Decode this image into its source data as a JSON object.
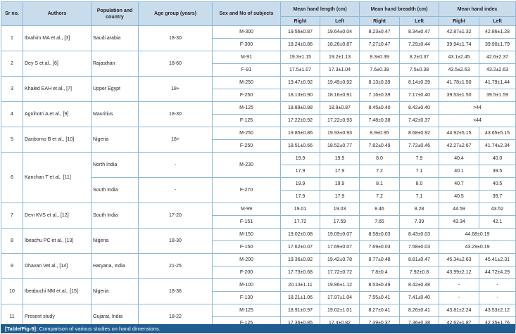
{
  "headers": {
    "sr": "Sr no.",
    "authors": "Authors",
    "population": "Population and country",
    "age": "Age group (years)",
    "sex": "Sex and No of subjects",
    "length": "Mean hand length (cm)",
    "breadth": "Mean hand breadth (cm)",
    "index": "Mean hand index",
    "right": "Right",
    "left": "Left"
  },
  "rows": [
    {
      "sr": "1",
      "author": "Ibrahim MA et al., [3]",
      "pop": "Saudi arabia",
      "age": "18-30",
      "sub": [
        {
          "sex": "M-300",
          "len_r": "19.56±0.87",
          "len_l": "19.64±0.04",
          "br_r": "8.23±0.47",
          "br_l": "8.34±0.47",
          "idx_r": "42.87±1.32",
          "idx_l": "42.86±1.28"
        },
        {
          "sex": "F-300",
          "len_r": "18.24±0.86",
          "len_l": "18.26±0.87",
          "br_r": "7.27±0.47",
          "br_l": "7.29±0.44",
          "idx_r": "39.94±1.74",
          "idx_l": "39.90±1.79"
        }
      ]
    },
    {
      "sr": "2",
      "author": "Dey S et al., [6]",
      "pop": "Rajasthan",
      "age": "18-60",
      "sub": [
        {
          "sex": "M-91",
          "len_r": "19.3±1.15",
          "len_l": "19.2±1.13",
          "br_r": "8.3±0.39",
          "br_l": "8.2±0.37",
          "idx_r": "43.1±2.45",
          "idx_l": "42.6±2.37"
        },
        {
          "sex": "F-91",
          "len_r": "17.5±1.07",
          "len_l": "17.3±1.04",
          "br_r": "7.6±0.39",
          "br_l": "7.5±0.38",
          "idx_r": "43.5±2.63",
          "idx_l": "43.2±2.63"
        }
      ]
    },
    {
      "sr": "3",
      "author": "Khaled EAH et al., [7]",
      "pop": "Upper Egypt",
      "age": "18+",
      "sub": [
        {
          "sex": "M-250",
          "len_r": "19.47±0.92",
          "len_l": "19.49±0.92",
          "br_r": "8.13±0.39",
          "br_l": "8.14±0.39",
          "idx_r": "41.78±1.50",
          "idx_l": "41.79±1.44"
        },
        {
          "sex": "F-250",
          "len_r": "18.13±0.90",
          "len_l": "18.16±0.91",
          "br_r": "7.16±0.39",
          "br_l": "7.17±0.40",
          "idx_r": "39.53±1.50",
          "idx_l": "39.5±1.59"
        }
      ]
    },
    {
      "sr": "4",
      "author": "Agnihotri A et al., [9]",
      "pop": "Mauritius",
      "age": "18-30",
      "sub": [
        {
          "sex": "M-125",
          "len_r": "18.89±0.88",
          "len_l": "18.9±0.87",
          "br_r": "8.45±0.40",
          "br_l": "8.42±0.40",
          "idx_span": ">44"
        },
        {
          "sex": "F-125",
          "len_r": "17.22±0.92",
          "len_l": "17.22±0.93",
          "br_r": "7.48±0.38",
          "br_l": "7.42±0.37",
          "idx_span": "<44"
        }
      ]
    },
    {
      "sr": "5",
      "author": "Danborno B et al., [10]",
      "pop": "Nigeria",
      "age": "18+",
      "sub": [
        {
          "sex": "M-250",
          "len_r": "19.85±0.86",
          "len_l": "19.93±0.93",
          "br_r": "8.9±0.95",
          "br_l": "8.68±0.92",
          "idx_r": "44.92±5.15",
          "idx_l": "43.65±5.15"
        },
        {
          "sex": "F-250",
          "len_r": "18.51±0.66",
          "len_l": "18.52±0.77",
          "br_r": "7.82±0.49",
          "br_l": "7.72±0.46",
          "idx_r": "42.27±2.67",
          "idx_l": "41.74±2.34"
        }
      ]
    },
    {
      "sr": "6",
      "author": "Kanchan T et al., [11]",
      "kanchan": true,
      "north": "North India",
      "south": "South India",
      "age": "-",
      "sexM": "M-230",
      "sexF": "F-270",
      "sub": [
        {
          "len_r": "19.9",
          "len_l": "19.9",
          "br_r": "8.0",
          "br_l": "7.9",
          "idx_r": "40.4",
          "idx_l": "40.0"
        },
        {
          "len_r": "17.9",
          "len_l": "17.9",
          "br_r": "7.2",
          "br_l": "7.1",
          "idx_r": "40.1",
          "idx_l": "39.5"
        },
        {
          "len_r": "19.9",
          "len_l": "19.9",
          "br_r": "8.1",
          "br_l": "8.0",
          "idx_r": "40.7",
          "idx_l": "40.5"
        },
        {
          "len_r": "17.9",
          "len_l": "17.9",
          "br_r": "7.2",
          "br_l": "7.1",
          "idx_r": "40.5",
          "idx_l": "39.7"
        }
      ]
    },
    {
      "sr": "7",
      "author": "Devi KVS et al., [12]",
      "pop": "South India",
      "age": "17-20",
      "sub": [
        {
          "sex": "M-99",
          "len_r": "19.01",
          "len_l": "19.03",
          "br_r": "8.46",
          "br_l": "8.28",
          "idx_r": "44.59",
          "idx_l": "43.52"
        },
        {
          "sex": "F-151",
          "len_r": "17.72",
          "len_l": "17.59",
          "br_r": "7.65",
          "br_l": "7.39",
          "idx_r": "43.34",
          "idx_l": "42.1"
        }
      ]
    },
    {
      "sr": "8",
      "author": "Ibeachu PC et al., [13]",
      "pop": "Nigeria",
      "age": "18-30",
      "sub": [
        {
          "sex": "M-150",
          "len_r": "19.02±0.08",
          "len_l": "19.09±0.07",
          "br_r": "8.58±0.03",
          "br_l": "8.43±0.03",
          "idx_span": "44.68±0.19"
        },
        {
          "sex": "F-150",
          "len_r": "17.62±0.07",
          "len_l": "17.69±0.07",
          "br_r": "7.69±0.03",
          "br_l": "7.58±0.03",
          "idx_span": "43.29±0.19"
        }
      ]
    },
    {
      "sr": "9",
      "author": "Dhavan Vet al., [14]",
      "pop": "Haryana, India",
      "age": "21-25",
      "sub": [
        {
          "sex": "M-200",
          "len_r": "19.36±0.82",
          "len_l": "19.42±0.78",
          "br_r": "8.77±0.48",
          "br_l": "8.81±0.47",
          "idx_r": "45.34±2.63",
          "idx_l": "45.41±2.31"
        },
        {
          "sex": "F-200",
          "len_r": "17.73±0.68",
          "len_l": "17.72±0.72",
          "br_r": "7.8±0.4",
          "br_l": "7.92±0.8",
          "idx_r": "43.99±2.12",
          "idx_l": "44.72±4.29"
        }
      ]
    },
    {
      "sr": "10",
      "author": "Ibeabuchi NM et al., [15]",
      "pop": "Nigeria",
      "age": "18-36",
      "sub": [
        {
          "sex": "M-100",
          "len_r": "20.13±1.11",
          "len_l": "19.86±1.12",
          "br_r": "8.53±0.49",
          "br_l": "8.42±0.48",
          "idx_r": "-",
          "idx_l": "-"
        },
        {
          "sex": "F-130",
          "len_r": "18.21±1.06",
          "len_l": "17.97±1.04",
          "br_r": "7.55±0.41",
          "br_l": "7.41±0.40",
          "idx_r": "-",
          "idx_l": "-"
        }
      ]
    },
    {
      "sr": "11",
      "author": "Present study",
      "pop": "Gujarat, India",
      "age": "18-22",
      "sub": [
        {
          "sex": "M-125",
          "len_r": "18.91±0.97",
          "len_l": "19.02±1.01",
          "br_r": "8.27±0.41",
          "br_l": "8.26±0.41",
          "idx_r": "43.81±2.24",
          "idx_l": "43.53±2.12"
        },
        {
          "sex": "F-125",
          "len_r": "17.36±0.85",
          "len_l": "17.4±0.82",
          "br_r": "7.39±0.37",
          "br_l": "7.36±0.38",
          "idx_r": "42.62±1.87",
          "idx_l": "42.35±1.76"
        }
      ]
    }
  ],
  "caption": {
    "label": "[Table/Fig-9]:",
    "text": " Comparison of various studies on hand dimensions."
  },
  "colors": {
    "header_bg": "#c9dcec",
    "border": "#8fb8d6",
    "caption_bg": "#1f5d92"
  }
}
